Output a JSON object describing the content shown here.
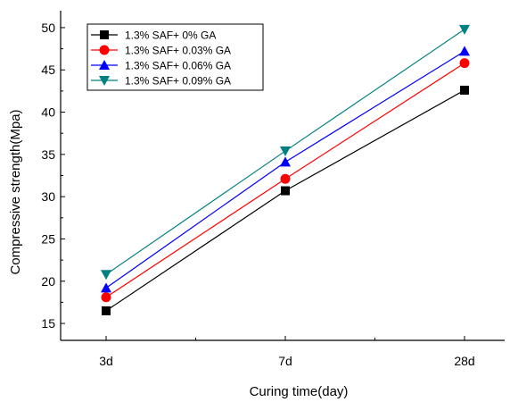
{
  "chart_data": {
    "type": "line",
    "title": "",
    "xlabel": "Curing time(day)",
    "ylabel": "Compressive strength(Mpa)",
    "categories": [
      "3d",
      "7d",
      "28d"
    ],
    "ylim": [
      13,
      52
    ],
    "yticks": [
      15,
      20,
      25,
      30,
      35,
      40,
      45,
      50
    ],
    "grid": false,
    "legend_position": "top-left",
    "series": [
      {
        "name": "1.3% SAF+ 0% GA",
        "values": [
          16.5,
          30.7,
          42.6
        ],
        "color": "#000000",
        "marker": "square"
      },
      {
        "name": "1.3% SAF+ 0.03% GA",
        "values": [
          18.1,
          32.1,
          45.8
        ],
        "color": "#ff0000",
        "marker": "circle"
      },
      {
        "name": "1.3% SAF+ 0.06% GA",
        "values": [
          19.2,
          34.1,
          47.2
        ],
        "color": "#0000ff",
        "marker": "triangle-up"
      },
      {
        "name": "1.3% SAF+ 0.09% GA",
        "values": [
          20.8,
          35.4,
          49.8
        ],
        "color": "#008080",
        "marker": "triangle-down"
      }
    ]
  }
}
